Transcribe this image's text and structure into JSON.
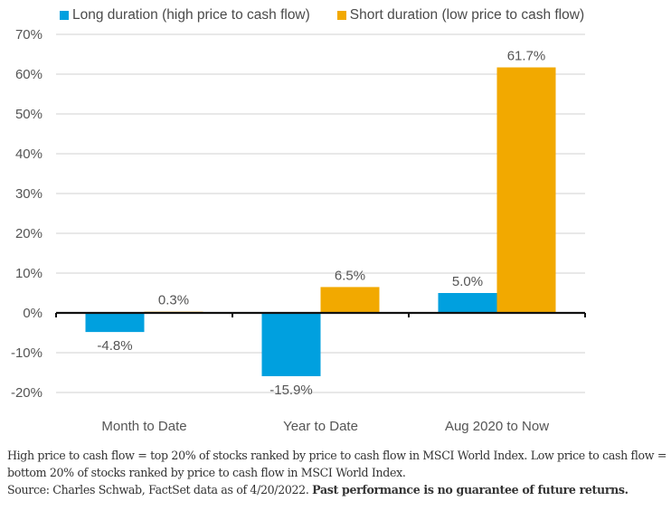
{
  "chart_data": {
    "type": "bar",
    "title": "",
    "xlabel": "",
    "ylabel": "",
    "categories": [
      "Month to Date",
      "Year to Date",
      "Aug 2020 to Now"
    ],
    "series": [
      {
        "name": "Long duration (high price to cash flow)",
        "color": "#00A0DF",
        "values": [
          -4.8,
          -15.9,
          5.0
        ],
        "labels": [
          "-4.8%",
          "-15.9%",
          "5.0%"
        ]
      },
      {
        "name": "Short duration (low price to cash flow)",
        "color": "#F2A900",
        "values": [
          0.3,
          6.5,
          61.7
        ],
        "labels": [
          "0.3%",
          "6.5%",
          "61.7%"
        ]
      }
    ],
    "ylim": [
      -20,
      70
    ],
    "yticks": [
      70,
      60,
      50,
      40,
      30,
      20,
      10,
      0,
      -10,
      -20
    ],
    "ytick_labels": [
      "70%",
      "60%",
      "50%",
      "40%",
      "30%",
      "20%",
      "10%",
      "0%",
      "-10%",
      "-20%"
    ],
    "grid": true,
    "legend_position": "top"
  },
  "legend": {
    "items": [
      {
        "label": "Long duration (high price to cash flow)",
        "color": "#00A0DF"
      },
      {
        "label": "Short duration (low price to cash flow)",
        "color": "#F2A900"
      }
    ]
  },
  "footnote": {
    "line1": "High price to cash flow = top 20% of stocks ranked by price to cash flow in MSCI World Index. Low price to cash flow = bottom 20% of stocks ranked by price to cash flow in MSCI World Index.",
    "source": "Source: Charles Schwab, FactSet data as of 4/20/2022. ",
    "disclaimer": "Past performance is no guarantee of future returns."
  }
}
